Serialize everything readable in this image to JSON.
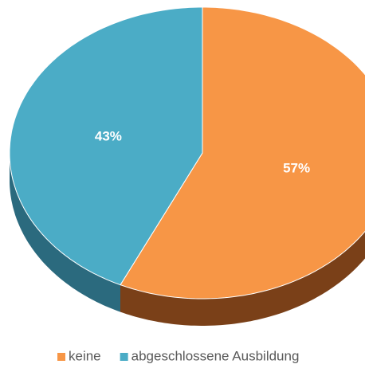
{
  "chart_data": {
    "type": "pie",
    "categories": [
      "keine",
      "abgeschlossene Ausbildung"
    ],
    "values": [
      57,
      43
    ],
    "value_labels": [
      "57%",
      "43%"
    ],
    "colors": [
      "#f79646",
      "#4bacc6"
    ],
    "side_colors": [
      "#7a4018",
      "#2b6a7e"
    ],
    "legend": "bottom"
  }
}
